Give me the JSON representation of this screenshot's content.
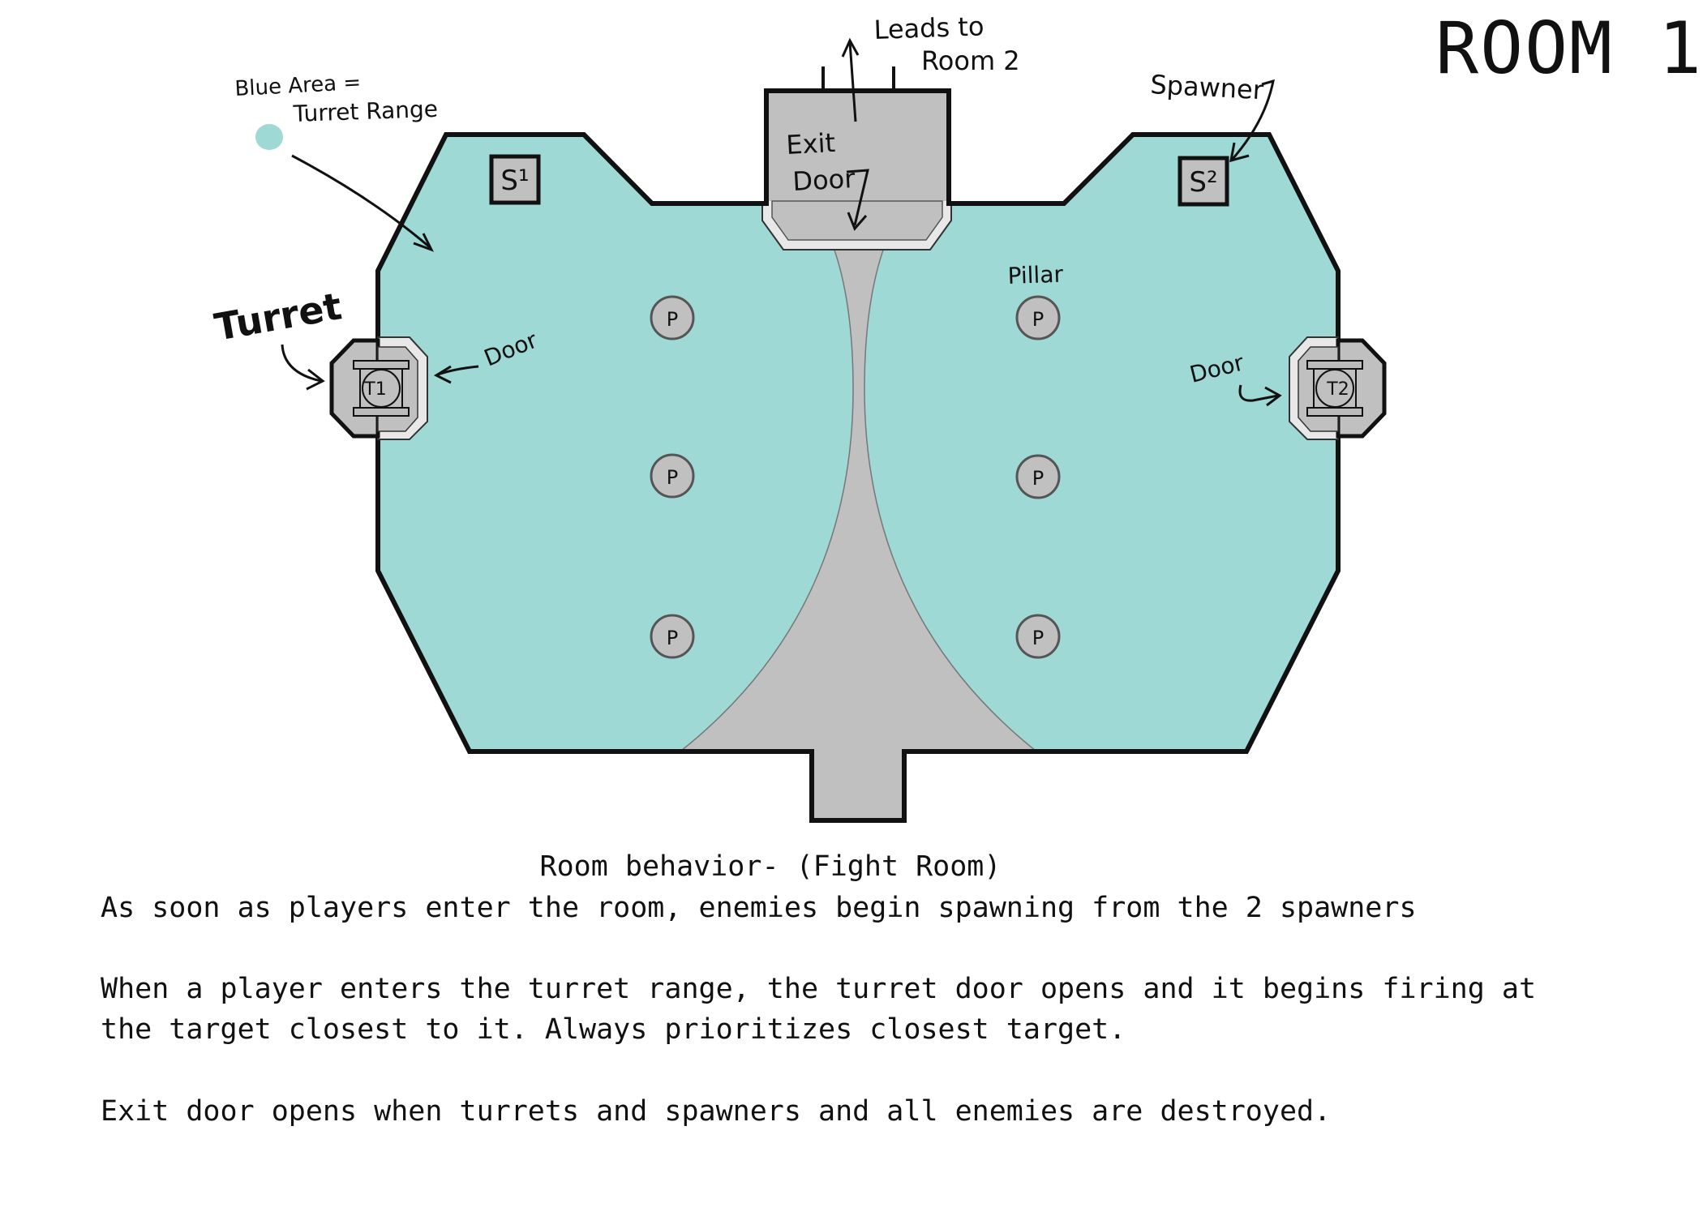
{
  "room_title": "ROOM 1",
  "colors": {
    "turret_range": "#9fd9d6",
    "floor_gray": "#c0c0c0",
    "outline": "#111111"
  },
  "labels": {
    "legend_line1": "Blue Area =",
    "legend_line2": "Turret Range",
    "leads_to_line1": "Leads to",
    "leads_to_line2": "Room 2",
    "exit_line1": "Exit",
    "exit_line2": "Door",
    "spawner": "Spawner",
    "pillar": "Pillar",
    "turret": "Turret",
    "door_left": "Door",
    "door_right": "Door"
  },
  "spawners": [
    {
      "id": "S¹"
    },
    {
      "id": "S²"
    }
  ],
  "turrets": [
    {
      "id": "T1"
    },
    {
      "id": "T2"
    }
  ],
  "pillar_label": "P",
  "description": {
    "heading": "Room behavior- (Fight Room)",
    "para1": "As soon as players enter the room, enemies begin spawning from the 2 spawners",
    "para2_line1": "When a player enters the turret range, the turret door opens and it begins firing at",
    "para2_line2": "the target closest to it. Always prioritizes closest target.",
    "para3": "Exit door opens when turrets and spawners and all enemies are destroyed."
  }
}
